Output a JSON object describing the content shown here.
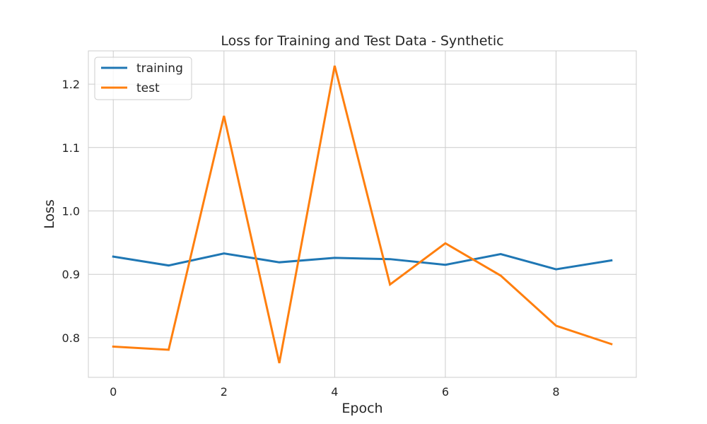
{
  "chart_data": {
    "type": "line",
    "title": "Loss for Training and Test Data - Synthetic",
    "xlabel": "Epoch",
    "ylabel": "Loss",
    "x": [
      0,
      1,
      2,
      3,
      4,
      5,
      6,
      7,
      8,
      9
    ],
    "xlim": [
      -0.45,
      9.45
    ],
    "ylim": [
      0.7375,
      1.2525
    ],
    "xticks": [
      0,
      2,
      4,
      6,
      8
    ],
    "xtick_labels": [
      "0",
      "2",
      "4",
      "6",
      "8"
    ],
    "yticks": [
      0.8,
      0.9,
      1.0,
      1.1,
      1.2
    ],
    "ytick_labels": [
      "0.8",
      "0.9",
      "1.0",
      "1.1",
      "1.2"
    ],
    "grid": true,
    "legend_position": "top-left",
    "series": [
      {
        "name": "training",
        "color": "#1f77b4",
        "values": [
          0.928,
          0.914,
          0.933,
          0.919,
          0.926,
          0.924,
          0.915,
          0.932,
          0.908,
          0.922
        ]
      },
      {
        "name": "test",
        "color": "#ff7f0e",
        "values": [
          0.786,
          0.781,
          1.15,
          0.76,
          1.229,
          0.884,
          0.949,
          0.898,
          0.819,
          0.79
        ]
      }
    ]
  }
}
